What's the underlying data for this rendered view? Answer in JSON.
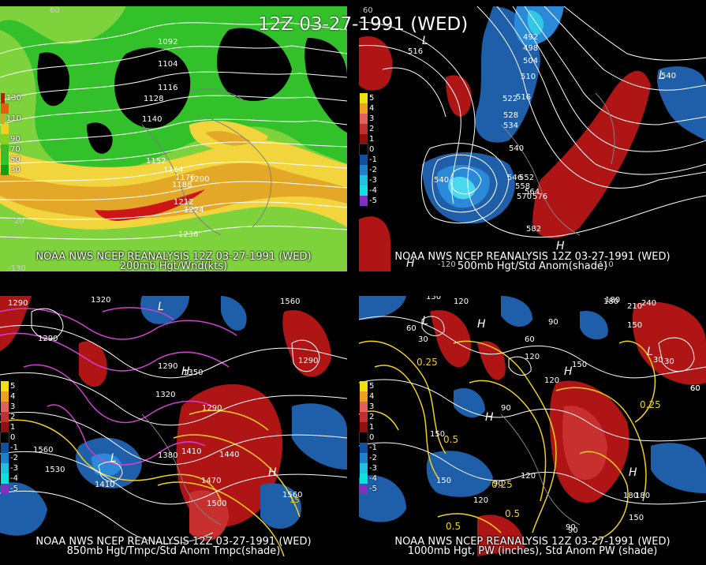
{
  "title": "12Z 03-27-1991 (WED)",
  "panels": [
    {
      "line1": "NOAA NWS NCEP REANALYSIS 12Z 03-27-1991 (WED)",
      "line2": "200mb Hgt/Wnd(kts)",
      "legend": [
        {
          "label": "130",
          "color": "#cc1010"
        },
        {
          "label": "",
          "color": "#e06010"
        },
        {
          "label": "110",
          "color": "#e3a020"
        },
        {
          "label": "",
          "color": "#f0d020"
        },
        {
          "label": "90",
          "color": "#8ad020"
        },
        {
          "label": "70",
          "color": "#40b828"
        },
        {
          "label": "50",
          "color": "#30c030"
        },
        {
          "label": "30",
          "color": "#10a010"
        }
      ],
      "contour_labels": [
        "1092",
        "1104",
        "1116",
        "1128",
        "1140",
        "1152",
        "1164",
        "1176",
        "1188",
        "1200",
        "1212",
        "1224",
        "1236"
      ],
      "axis_labels": [
        "60",
        "20",
        "-130"
      ]
    },
    {
      "line1": "NOAA NWS NCEP REANALYSIS 12Z 03-27-1991 (WED)",
      "line2": "500mb Hgt/Std Anom(shade)",
      "legend": [
        {
          "label": "5",
          "color": "#f0e010"
        },
        {
          "label": "4",
          "color": "#f0a020"
        },
        {
          "label": "3",
          "color": "#e06060"
        },
        {
          "label": "2",
          "color": "#c03030"
        },
        {
          "label": "1",
          "color": "#901010"
        },
        {
          "label": "0",
          "color": "#000000"
        },
        {
          "label": "-1",
          "color": "#1050a0"
        },
        {
          "label": "-2",
          "color": "#2080d0"
        },
        {
          "label": "-3",
          "color": "#20c0e0"
        },
        {
          "label": "-4",
          "color": "#10e0e0"
        },
        {
          "label": "-5",
          "color": "#8030c0"
        }
      ],
      "contour_labels": [
        "492",
        "498",
        "504",
        "510",
        "516",
        "522",
        "528",
        "534",
        "540",
        "546",
        "552",
        "558",
        "564",
        "570",
        "576",
        "582",
        "516",
        "540",
        "540"
      ],
      "axis_labels": [
        "60",
        "-120",
        "-110"
      ]
    },
    {
      "line1": "NOAA NWS NCEP REANALYSIS 12Z 03-27-1991 (WED)",
      "line2": "850mb Hgt/Tmpc/Std Anom Tmpc(shade)",
      "legend": [
        {
          "label": "5",
          "color": "#f0e010"
        },
        {
          "label": "4",
          "color": "#f0a020"
        },
        {
          "label": "3",
          "color": "#e06060"
        },
        {
          "label": "2",
          "color": "#c03030"
        },
        {
          "label": "1",
          "color": "#901010"
        },
        {
          "label": "0",
          "color": "#000000"
        },
        {
          "label": "-1",
          "color": "#1050a0"
        },
        {
          "label": "-2",
          "color": "#2080d0"
        },
        {
          "label": "-3",
          "color": "#20c0e0"
        },
        {
          "label": "-4",
          "color": "#10e0e0"
        },
        {
          "label": "-5",
          "color": "#8030c0"
        }
      ],
      "contour_labels": [
        "1290",
        "1320",
        "1560",
        "1290",
        "1350",
        "1320",
        "1290",
        "1380",
        "1410",
        "1440",
        "1470",
        "1500",
        "1560",
        "1410",
        "1530",
        "1560",
        "15",
        "1290",
        "1290"
      ],
      "axis_labels": []
    },
    {
      "line1": "NOAA NWS NCEP REANALYSIS 12Z 03-27-1991 (WED)",
      "line2": "1000mb Hgt, PW (inches), Std Anom PW (shade)",
      "legend": [
        {
          "label": "5",
          "color": "#f0e010"
        },
        {
          "label": "4",
          "color": "#f0a020"
        },
        {
          "label": "3",
          "color": "#e06060"
        },
        {
          "label": "2",
          "color": "#c03030"
        },
        {
          "label": "1",
          "color": "#901010"
        },
        {
          "label": "0",
          "color": "#000000"
        },
        {
          "label": "-1",
          "color": "#1050a0"
        },
        {
          "label": "-2",
          "color": "#2080d0"
        },
        {
          "label": "-3",
          "color": "#20c0e0"
        },
        {
          "label": "-4",
          "color": "#10e0e0"
        },
        {
          "label": "-5",
          "color": "#8030c0"
        }
      ],
      "contour_labels": [
        "150",
        "120",
        "60",
        "30",
        "90",
        "60",
        "180",
        "240",
        "210",
        "150",
        "30",
        "60",
        "120",
        "150",
        "180",
        "120",
        "90",
        "0.25",
        "0.5",
        "0.25",
        "150",
        "120",
        "90",
        "180",
        "0.25",
        "0.5",
        "0.5",
        "120",
        "90",
        "60",
        "30",
        "150",
        "180",
        "150",
        "90"
      ],
      "axis_labels": []
    }
  ]
}
